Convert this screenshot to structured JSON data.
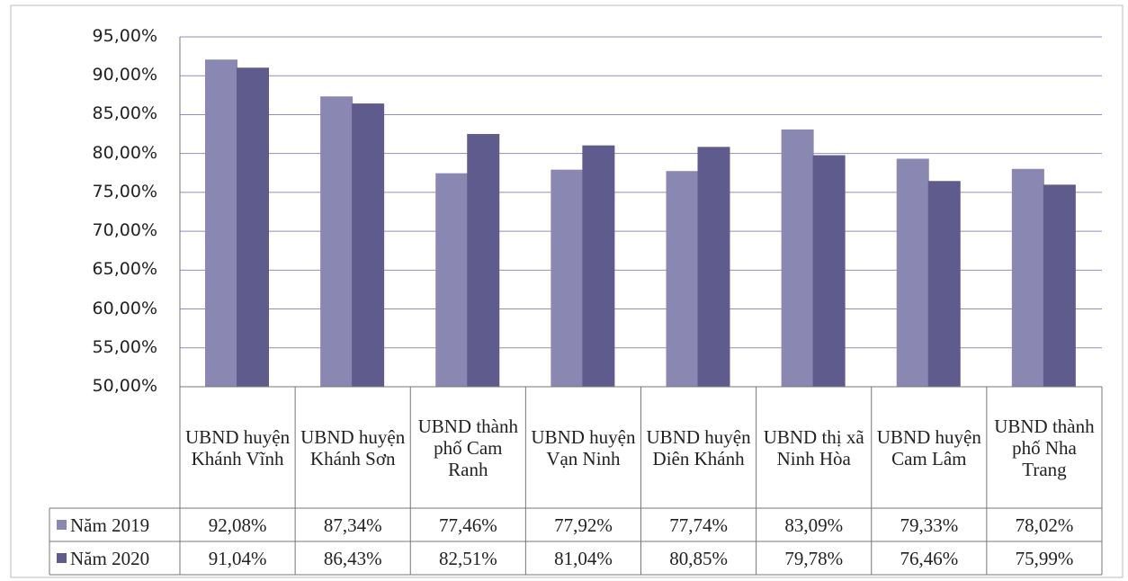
{
  "chart_data": {
    "type": "bar",
    "categories": [
      "UBND huyện Khánh Vĩnh",
      "UBND huyện Khánh Sơn",
      "UBND thành phố Cam Ranh",
      "UBND huyện Vạn Ninh",
      "UBND huyện Diên Khánh",
      "UBND thị xã Ninh Hòa",
      "UBND huyện Cam Lâm",
      "UBND thành phố Nha Trang"
    ],
    "series": [
      {
        "name": "Năm 2019",
        "color": "#8a87b2",
        "values": [
          92.08,
          87.34,
          77.46,
          77.92,
          77.74,
          83.09,
          79.33,
          78.02
        ],
        "value_labels": [
          "92,08%",
          "87,34%",
          "77,46%",
          "77,92%",
          "77,74%",
          "83,09%",
          "79,33%",
          "78,02%"
        ]
      },
      {
        "name": "Năm 2020",
        "color": "#5f5b8c",
        "values": [
          91.04,
          86.43,
          82.51,
          81.04,
          80.85,
          79.78,
          76.46,
          75.99
        ],
        "value_labels": [
          "91,04%",
          "86,43%",
          "82,51%",
          "81,04%",
          "80,85%",
          "79,78%",
          "76,46%",
          "75,99%"
        ]
      }
    ],
    "ylim": [
      50,
      95
    ],
    "yticks": [
      {
        "value": 50,
        "label": "50,00%"
      },
      {
        "value": 55,
        "label": "55,00%"
      },
      {
        "value": 60,
        "label": "60,00%"
      },
      {
        "value": 65,
        "label": "65,00%"
      },
      {
        "value": 70,
        "label": "70,00%"
      },
      {
        "value": 75,
        "label": "75,00%"
      },
      {
        "value": 80,
        "label": "80,00%"
      },
      {
        "value": 85,
        "label": "85,00%"
      },
      {
        "value": 90,
        "label": "90,00%"
      },
      {
        "value": 95,
        "label": "95,00%"
      }
    ],
    "grid": true
  }
}
